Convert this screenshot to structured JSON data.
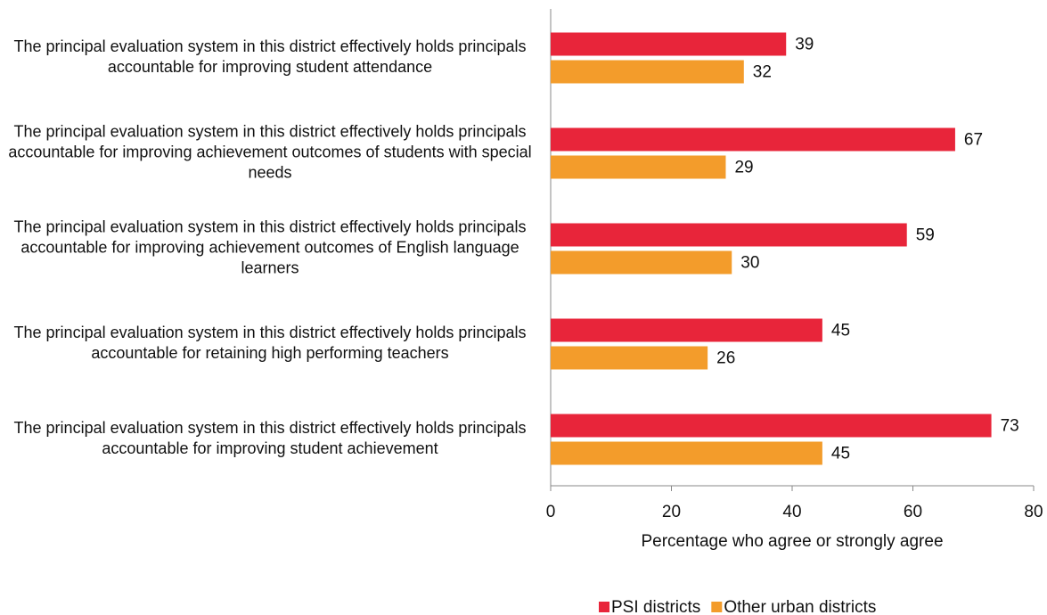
{
  "chart_data": {
    "type": "hbar",
    "categories": [
      "The principal evaluation system in this district effectively holds principals accountable for improving student attendance",
      "The principal evaluation system in this district effectively holds principals accountable for improving achievement outcomes of students with special needs",
      "The principal evaluation system in this district effectively holds principals accountable for improving achievement outcomes of English language learners",
      "The principal evaluation system in this district effectively holds principals accountable for retaining high performing teachers",
      "The principal evaluation system in this district effectively holds principals accountable for improving student achievement"
    ],
    "series": [
      {
        "name": "PSI districts",
        "color": "#e8253a",
        "values": [
          39,
          67,
          59,
          45,
          73
        ]
      },
      {
        "name": "Other urban districts",
        "color": "#f39c2b",
        "values": [
          32,
          29,
          30,
          26,
          45
        ]
      }
    ],
    "xlabel": "Percentage who agree or strongly agree",
    "xlim": [
      0,
      80
    ],
    "xticks": [
      0,
      20,
      40,
      60,
      80
    ],
    "legend": "bottom"
  }
}
